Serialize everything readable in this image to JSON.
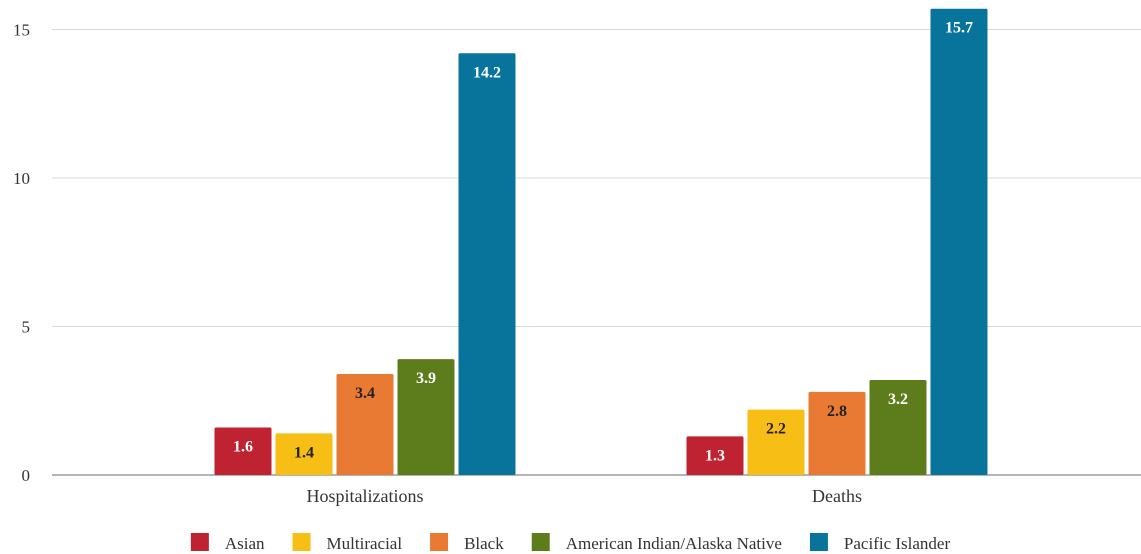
{
  "chart_data": {
    "type": "bar",
    "categories": [
      "Hospitalizations",
      "Deaths"
    ],
    "series": [
      {
        "name": "Asian",
        "values": [
          1.6,
          1.3
        ],
        "color": "#bf2231",
        "label_color": "#ffffff"
      },
      {
        "name": "Multiracial",
        "values": [
          1.4,
          2.2
        ],
        "color": "#f7be15",
        "label_color": "#222222"
      },
      {
        "name": "Black",
        "values": [
          3.4,
          2.8
        ],
        "color": "#e87a33",
        "label_color": "#222222"
      },
      {
        "name": "American Indian/Alaska Native",
        "values": [
          3.9,
          3.2
        ],
        "color": "#5d7d1d",
        "label_color": "#ffffff"
      },
      {
        "name": "Pacific Islander",
        "values": [
          14.2,
          15.7
        ],
        "color": "#08739b",
        "label_color": "#ffffff"
      }
    ],
    "yticks": [
      0,
      5,
      10,
      15
    ],
    "ylim": [
      0,
      16
    ],
    "grid": true,
    "legend": "bottom"
  }
}
